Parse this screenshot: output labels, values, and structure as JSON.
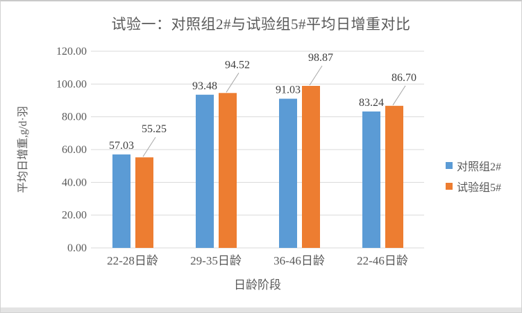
{
  "window": {
    "background": "#ffffff",
    "border_color": "#d2d2d2",
    "bottom_edge_color": "#e3e3e3"
  },
  "colors": {
    "gridline": "#d9d9d9",
    "axis_line": "#d9d9d9",
    "axis_text": "#595959",
    "data_label_text": "#3f3f3f",
    "leader_line": "#a6a6a6",
    "series_blue": "#5B9BD5",
    "series_orange": "#ED7D31"
  },
  "chart_data": {
    "type": "bar",
    "title": "试验一：对照组2#与试验组5#平均日增重对比",
    "xlabel": "日龄阶段",
    "ylabel": "平均日增重,g/d·羽",
    "categories": [
      "22-28日龄",
      "29-35日龄",
      "36-46日龄",
      "22-46日龄"
    ],
    "series": [
      {
        "name": "对照组2#",
        "color": "#5B9BD5",
        "values": [
          57.03,
          93.48,
          91.03,
          83.24
        ],
        "data_labels": [
          "57.03",
          "93.48",
          "91.03",
          "83.24"
        ]
      },
      {
        "name": "试验组5#",
        "color": "#ED7D31",
        "values": [
          55.25,
          94.52,
          98.87,
          86.7
        ],
        "data_labels": [
          "55.25",
          "94.52",
          "98.87",
          "86.70"
        ]
      }
    ],
    "ylim": [
      0,
      120
    ],
    "ytick_step": 20,
    "ytick_labels": [
      "0.00",
      "20.00",
      "40.00",
      "60.00",
      "80.00",
      "100.00",
      "120.00"
    ],
    "grid": true,
    "legend_position": "right"
  }
}
